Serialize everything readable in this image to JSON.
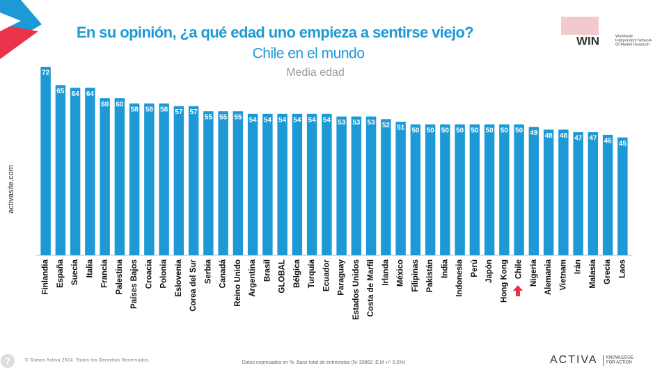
{
  "chart_data": {
    "type": "bar",
    "title": "En su opinión, ¿a qué edad uno empieza a sentirse viejo?",
    "subtitle": "Chile en el mundo",
    "y_label": "Media edad",
    "categories": [
      "Finlandia",
      "España",
      "Suecia",
      "Italia",
      "Francia",
      "Palestina",
      "Países Bajos",
      "Croacia",
      "Polonia",
      "Eslovenia",
      "Corea del Sur",
      "Serbia",
      "Canadá",
      "Reino Unido",
      "Argentina",
      "Brasil",
      "GLOBAL",
      "Bélgica",
      "Turquía",
      "Ecuador",
      "Paraguay",
      "Estados Unidos",
      "Costa de Marfil",
      "Irlanda",
      "México",
      "Filipinas",
      "Pakistán",
      "India",
      "Indonesia",
      "Perú",
      "Japón",
      "Hong Kong",
      "Chile",
      "Nigeria",
      "Alemania",
      "Vietnam",
      "Irán",
      "Malasia",
      "Grecia",
      "Laos"
    ],
    "values": [
      72,
      65,
      64,
      64,
      60,
      60,
      58,
      58,
      58,
      57,
      57,
      55,
      55,
      55,
      54,
      54,
      54,
      54,
      54,
      54,
      53,
      53,
      53,
      52,
      51,
      50,
      50,
      50,
      50,
      50,
      50,
      50,
      50,
      49,
      48,
      48,
      47,
      47,
      46,
      45
    ],
    "color": "#1d9ad6",
    "ylim": [
      0,
      72
    ]
  },
  "footer": {
    "copyright": "© Somos Activa 2024. Todos los Derechos Reservados.",
    "note": "Datos expresados en %. Base total de entrevistas (N: 33862 ;E.M +/- 0,5%)",
    "brand": "ACTIVA",
    "brand_tagline": [
      "KNOWLEDGE",
      "FOR ACTION"
    ],
    "help": "?"
  },
  "side_text": "activasite.com",
  "win_logo": {
    "name": "WIN",
    "tagline": [
      "Worldwide",
      "Independent Network",
      "Of Market Research"
    ]
  }
}
